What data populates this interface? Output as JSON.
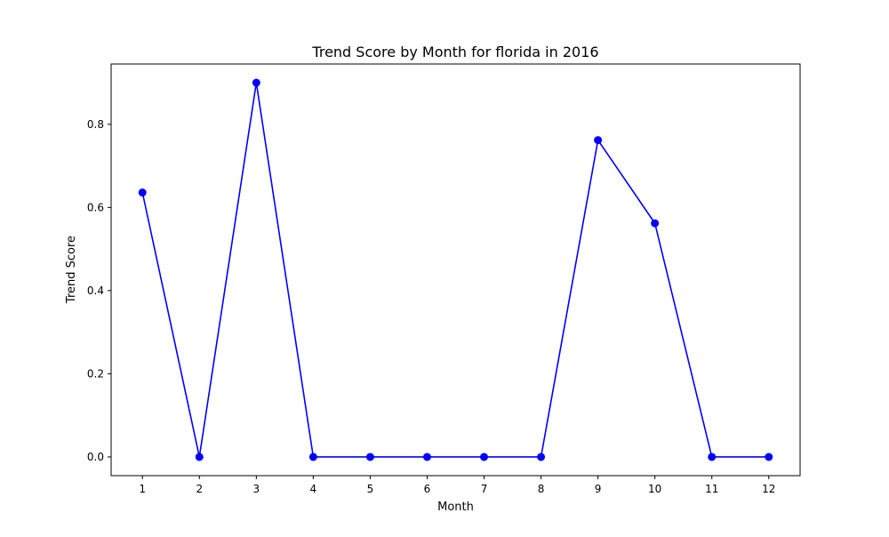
{
  "chart_data": {
    "type": "line",
    "title": "Trend Score by Month for florida in 2016",
    "xlabel": "Month",
    "ylabel": "Trend Score",
    "x": [
      1,
      2,
      3,
      4,
      5,
      6,
      7,
      8,
      9,
      10,
      11,
      12
    ],
    "series": [
      {
        "values": [
          0.636,
          0.0,
          0.9,
          0.0,
          0.0,
          0.0,
          0.0,
          0.0,
          0.762,
          0.562,
          0.0,
          0.0
        ]
      }
    ],
    "xlim": [
      0.45,
      12.55
    ],
    "ylim": [
      -0.045,
      0.945
    ],
    "xticks": [
      1,
      2,
      3,
      4,
      5,
      6,
      7,
      8,
      9,
      10,
      11,
      12
    ],
    "xtick_labels": [
      "1",
      "2",
      "3",
      "4",
      "5",
      "6",
      "7",
      "8",
      "9",
      "10",
      "11",
      "12"
    ],
    "yticks": [
      0.0,
      0.2,
      0.4,
      0.6,
      0.8
    ],
    "ytick_labels": [
      "0.0",
      "0.2",
      "0.4",
      "0.6",
      "0.8"
    ],
    "grid": false,
    "marker": "circle",
    "colors": {
      "line": "#0000ff",
      "axes": "#000000",
      "background": "#ffffff"
    }
  }
}
